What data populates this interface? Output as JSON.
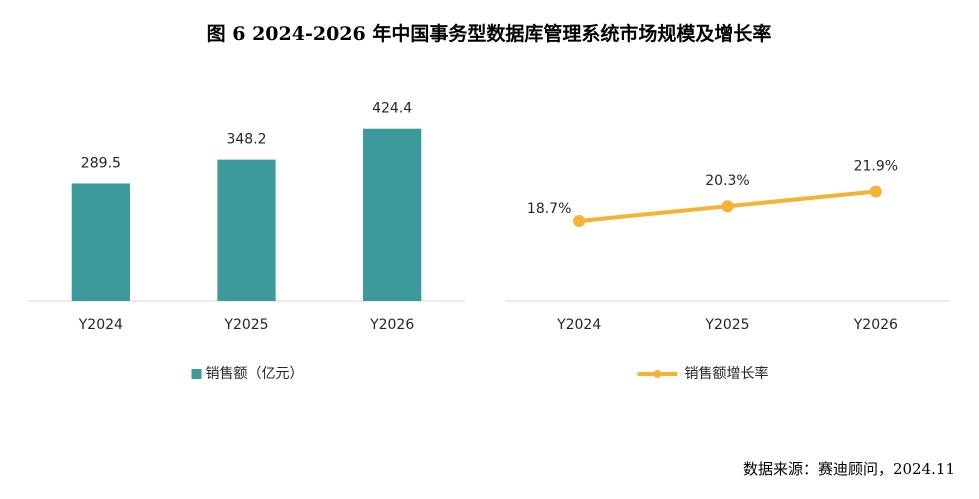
{
  "title": "图 6 2024-2026 年中国事务型数据库管理系统市场规模及增长率",
  "source": "数据来源：赛迪顾问，2024.11",
  "chart_data": [
    {
      "type": "bar",
      "categories": [
        "Y2024",
        "Y2025",
        "Y2026"
      ],
      "series": [
        {
          "name": "销售额（亿元）",
          "color": "#3d9a9b",
          "values": [
            289.5,
            348.2,
            424.4
          ]
        }
      ],
      "ylim": [
        0,
        500
      ],
      "legend": "bottom"
    },
    {
      "type": "line",
      "categories": [
        "Y2024",
        "Y2025",
        "Y2026"
      ],
      "series": [
        {
          "name": "销售额增长率",
          "color": "#f5b335",
          "values": [
            18.7,
            20.3,
            21.9
          ],
          "value_labels": [
            "18.7%",
            "20.3%",
            "21.9%"
          ]
        }
      ],
      "ylim": [
        10,
        25
      ],
      "legend": "bottom"
    }
  ]
}
